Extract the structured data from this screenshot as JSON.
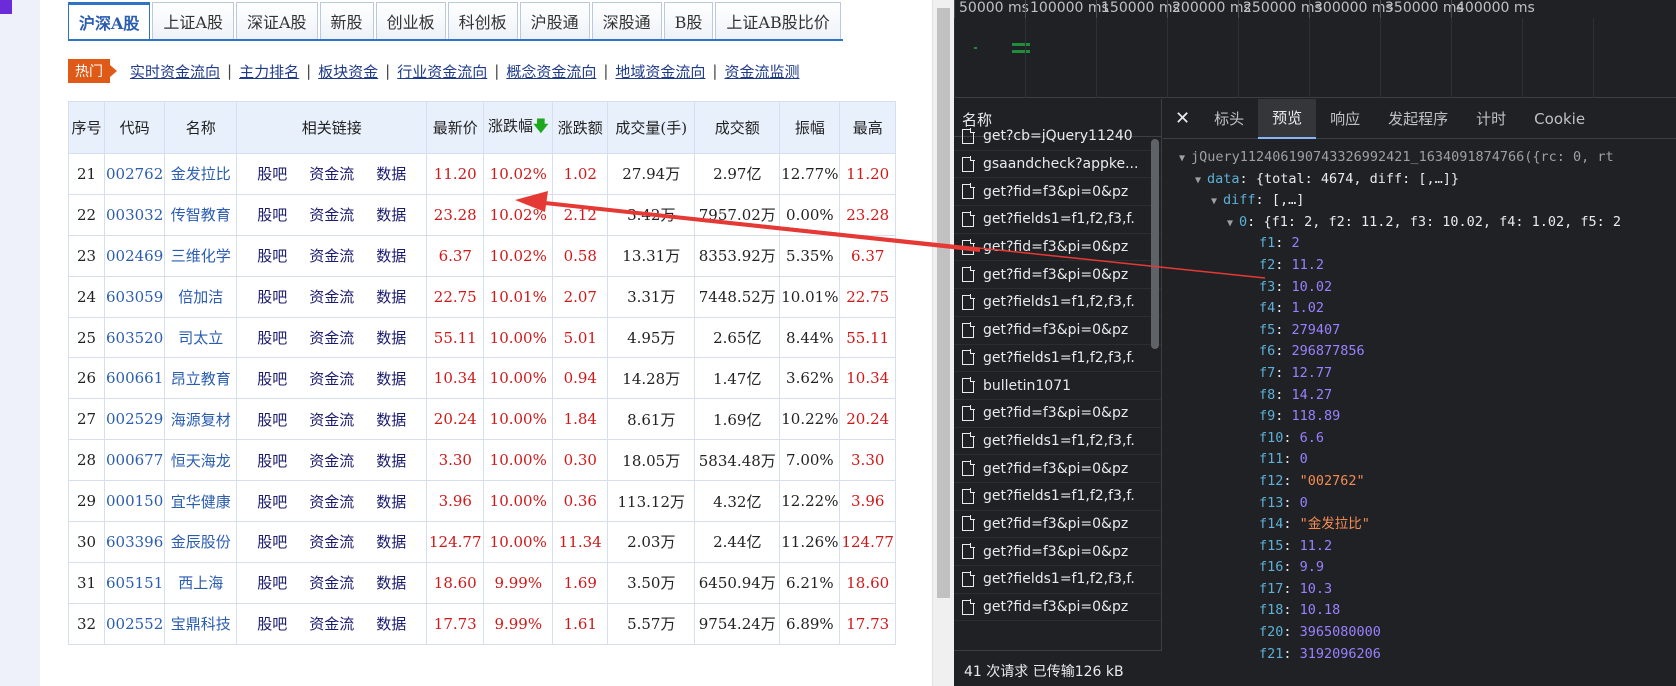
{
  "tabs": [
    "沪深A股",
    "上证A股",
    "深证A股",
    "新股",
    "创业板",
    "科创板",
    "沪股通",
    "深股通",
    "B股",
    "上证AB股比价"
  ],
  "hot": {
    "badge": "热门",
    "links": [
      "实时资金流向",
      "主力排名",
      "板块资金",
      "行业资金流向",
      "概念资金流向",
      "地域资金流向",
      "资金流监测"
    ]
  },
  "table": {
    "headers": [
      "序号",
      "代码",
      "名称",
      "相关链接",
      "最新价",
      "涨跌幅",
      "涨跌额",
      "成交量(手)",
      "成交额",
      "振幅",
      "最高"
    ],
    "sort_arrow": "🡇",
    "link_labels": [
      "股吧",
      "资金流",
      "数据"
    ],
    "rows": [
      [
        "21",
        "002762",
        "金发拉比",
        "11.20",
        "10.02%",
        "1.02",
        "27.94万",
        "2.97亿",
        "12.77%",
        "11.20"
      ],
      [
        "22",
        "003032",
        "传智教育",
        "23.28",
        "10.02%",
        "2.12",
        "3.42万",
        "7957.02万",
        "0.00%",
        "23.28"
      ],
      [
        "23",
        "002469",
        "三维化学",
        "6.37",
        "10.02%",
        "0.58",
        "13.31万",
        "8353.92万",
        "5.35%",
        "6.37"
      ],
      [
        "24",
        "603059",
        "倍加洁",
        "22.75",
        "10.01%",
        "2.07",
        "3.31万",
        "7448.52万",
        "10.01%",
        "22.75"
      ],
      [
        "25",
        "603520",
        "司太立",
        "55.11",
        "10.00%",
        "5.01",
        "4.95万",
        "2.65亿",
        "8.44%",
        "55.11"
      ],
      [
        "26",
        "600661",
        "昂立教育",
        "10.34",
        "10.00%",
        "0.94",
        "14.28万",
        "1.47亿",
        "3.62%",
        "10.34"
      ],
      [
        "27",
        "002529",
        "海源复材",
        "20.24",
        "10.00%",
        "1.84",
        "8.61万",
        "1.69亿",
        "10.22%",
        "20.24"
      ],
      [
        "28",
        "000677",
        "恒天海龙",
        "3.30",
        "10.00%",
        "0.30",
        "18.05万",
        "5834.48万",
        "7.00%",
        "3.30"
      ],
      [
        "29",
        "000150",
        "宜华健康",
        "3.96",
        "10.00%",
        "0.36",
        "113.12万",
        "4.32亿",
        "12.22%",
        "3.96"
      ],
      [
        "30",
        "603396",
        "金辰股份",
        "124.77",
        "10.00%",
        "11.34",
        "2.03万",
        "2.44亿",
        "11.26%",
        "124.77"
      ],
      [
        "31",
        "605151",
        "西上海",
        "18.60",
        "9.99%",
        "1.69",
        "3.50万",
        "6450.94万",
        "6.21%",
        "18.60"
      ],
      [
        "32",
        "002552",
        "宝鼎科技",
        "17.73",
        "9.99%",
        "1.61",
        "5.57万",
        "9754.24万",
        "6.89%",
        "17.73"
      ]
    ]
  },
  "devtools": {
    "timeline_ticks": [
      "50000 ms",
      "100000 ms",
      "150000 ms",
      "200000 ms",
      "250000 ms",
      "300000 ms",
      "350000 ms",
      "400000 ms"
    ],
    "reqlist_header": "名称",
    "requests": [
      "get?cb=jQuery11240",
      "gsaandcheck?appke...",
      "get?fid=f3&pi=0&pz",
      "get?fields1=f1,f2,f3,f.",
      "get?fid=f3&pi=0&pz",
      "get?fid=f3&pi=0&pz",
      "get?fields1=f1,f2,f3,f.",
      "get?fid=f3&pi=0&pz",
      "get?fields1=f1,f2,f3,f.",
      "bulletin1071",
      "get?fid=f3&pi=0&pz",
      "get?fields1=f1,f2,f3,f.",
      "get?fid=f3&pi=0&pz",
      "get?fields1=f1,f2,f3,f.",
      "get?fid=f3&pi=0&pz",
      "get?fid=f3&pi=0&pz",
      "get?fields1=f1,f2,f3,f.",
      "get?fid=f3&pi=0&pz"
    ],
    "status": "41 次请求  已传输126 kB",
    "detail_tabs": [
      "标头",
      "预览",
      "响应",
      "发起程序",
      "计时",
      "Cookie"
    ],
    "active_tab": "预览",
    "json_root": "jQuery112406190743326992421_1634091874766({rc: 0, rt",
    "json_data_line": "{total: 4674, diff: [,…]}",
    "json_diff_line": "[,…]",
    "json_item_line": "{f1: 2, f2: 11.2, f3: 10.02, f4: 1.02, f5: 2",
    "fields": [
      {
        "k": "f1",
        "v": "2",
        "t": "num"
      },
      {
        "k": "f2",
        "v": "11.2",
        "t": "num"
      },
      {
        "k": "f3",
        "v": "10.02",
        "t": "num"
      },
      {
        "k": "f4",
        "v": "1.02",
        "t": "num"
      },
      {
        "k": "f5",
        "v": "279407",
        "t": "num"
      },
      {
        "k": "f6",
        "v": "296877856",
        "t": "num"
      },
      {
        "k": "f7",
        "v": "12.77",
        "t": "num"
      },
      {
        "k": "f8",
        "v": "14.27",
        "t": "num"
      },
      {
        "k": "f9",
        "v": "118.89",
        "t": "num"
      },
      {
        "k": "f10",
        "v": "6.6",
        "t": "num"
      },
      {
        "k": "f11",
        "v": "0",
        "t": "num"
      },
      {
        "k": "f12",
        "v": "\"002762\"",
        "t": "str"
      },
      {
        "k": "f13",
        "v": "0",
        "t": "num"
      },
      {
        "k": "f14",
        "v": "\"金发拉比\"",
        "t": "str"
      },
      {
        "k": "f15",
        "v": "11.2",
        "t": "num"
      },
      {
        "k": "f16",
        "v": "9.9",
        "t": "num"
      },
      {
        "k": "f17",
        "v": "10.3",
        "t": "num"
      },
      {
        "k": "f18",
        "v": "10.18",
        "t": "num"
      },
      {
        "k": "f20",
        "v": "3965080000",
        "t": "num"
      },
      {
        "k": "f21",
        "v": "3192096206",
        "t": "num"
      }
    ]
  },
  "colors": {
    "arrow": "#e53935",
    "accent": "#2e74c6",
    "hot_badge": "#e05a17",
    "red_value": "#d01818"
  }
}
